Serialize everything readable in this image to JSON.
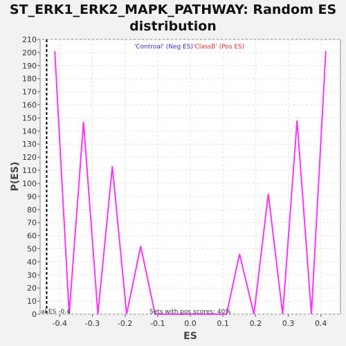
{
  "chart_data": {
    "type": "line",
    "title_lines": [
      "ST_ERK1_ERK2_MAPK_PATHWAY: Random ES",
      "distribution"
    ],
    "xlabel": "ES",
    "ylabel": "P(ES)",
    "xlim": [
      -0.46,
      0.46
    ],
    "ylim": [
      0,
      210
    ],
    "xticks": [
      -0.4,
      -0.3,
      -0.2,
      -0.1,
      0.0,
      0.1,
      0.2,
      0.3,
      0.4
    ],
    "xtick_labels": [
      "-0.4",
      "-0.3",
      "-0.2",
      "-0.1",
      "0.0",
      "0.1",
      "0.2",
      "0.3",
      "0.4"
    ],
    "yticks": [
      0,
      10,
      20,
      30,
      40,
      50,
      60,
      70,
      80,
      90,
      100,
      110,
      120,
      130,
      140,
      150,
      160,
      170,
      180,
      190,
      200,
      210
    ],
    "grid": true,
    "legend_neg": "'Controal' (Neg ES)",
    "legend_pos": "'ClassB' (Pos ES)",
    "legend_neg_color": "#3333cc",
    "legend_pos_color": "#e03030",
    "line_color": "#ff33ff",
    "series": [
      {
        "x": [
          -0.415,
          -0.371,
          -0.327,
          -0.283,
          -0.239,
          -0.195,
          -0.152,
          -0.108,
          -0.064,
          -0.02,
          0.024,
          0.068,
          0.111,
          0.151,
          0.195,
          0.239,
          0.283,
          0.327,
          0.371,
          0.415
        ],
        "y": [
          201,
          0,
          147,
          0,
          113,
          0,
          52,
          0,
          0,
          0,
          0,
          0,
          0,
          46,
          0,
          92,
          0,
          148,
          0,
          201
        ]
      }
    ],
    "actual_es": -0.44,
    "actual_es_label": "al ES -0.4",
    "pos_scores_label": "Sets with pos scores: 40%"
  }
}
